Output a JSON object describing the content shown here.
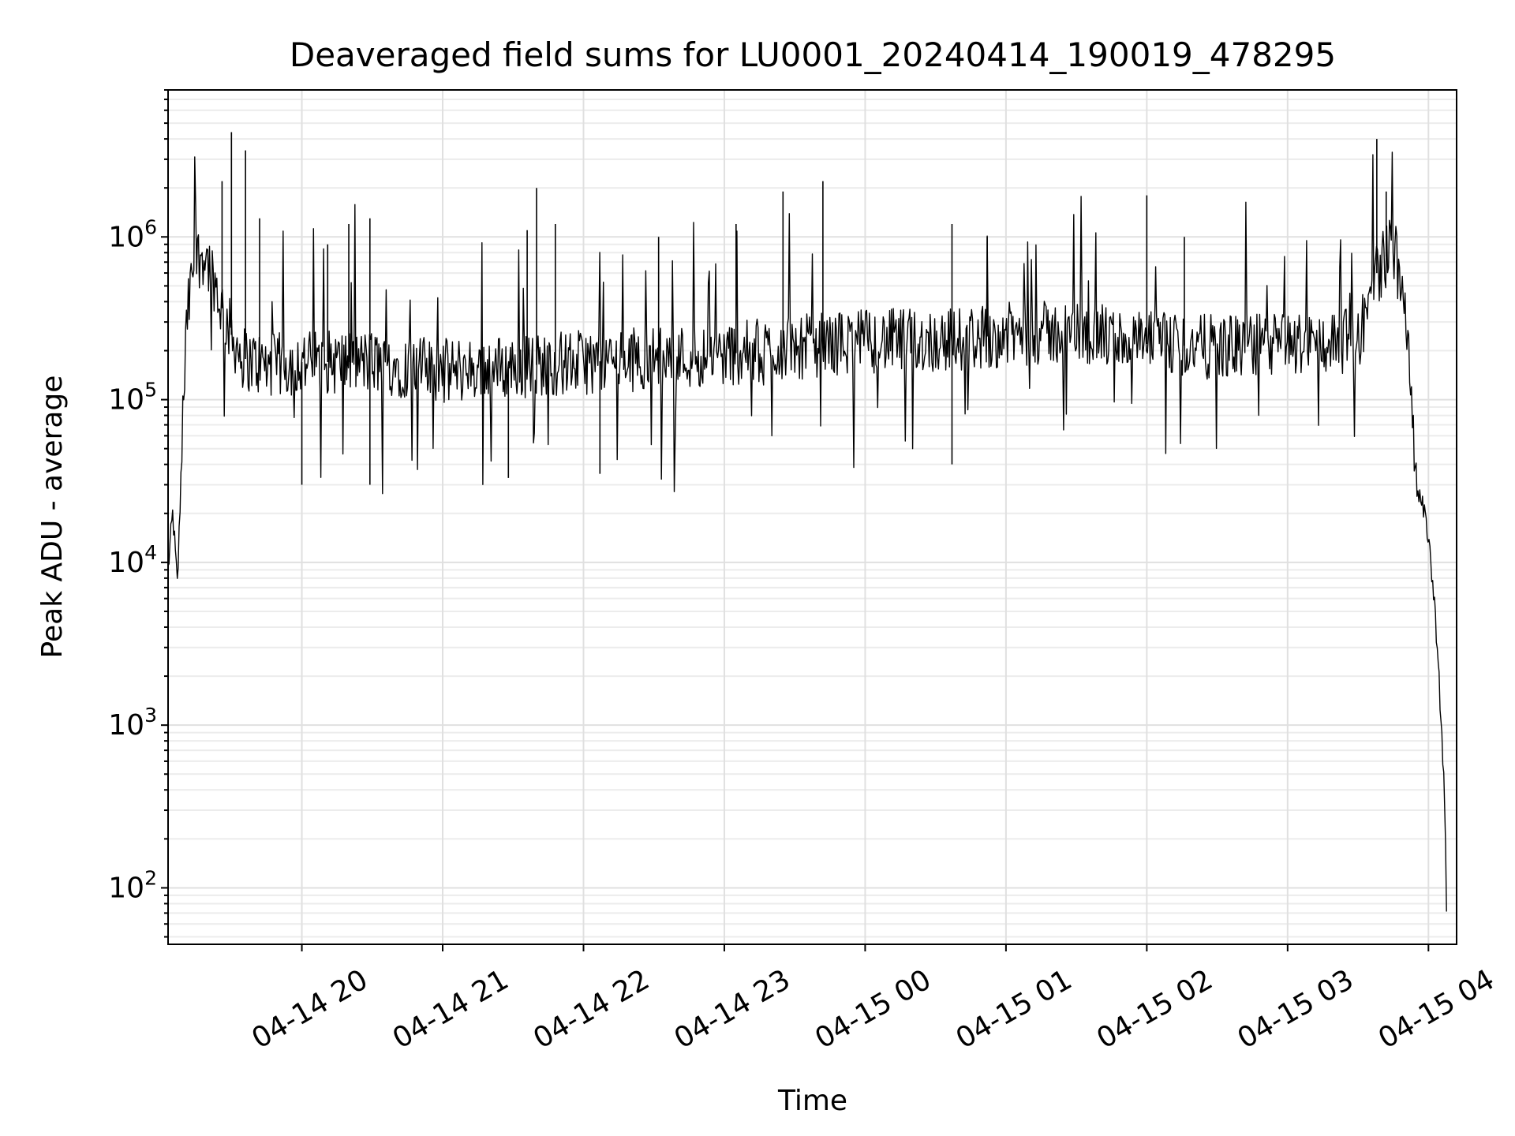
{
  "chart_data": {
    "type": "line",
    "title": "Deaveraged field sums for LU0001_20240414_190019_478295",
    "xlabel": "Time",
    "ylabel": "Peak ADU - average",
    "yscale": "log",
    "ylim": [
      45,
      8000000
    ],
    "xlim": [
      "2024-04-14 19:03",
      "2024-04-15 04:12"
    ],
    "grid": true,
    "line_color": "#000000",
    "xticks": [
      {
        "value": "2024-04-14 20:00",
        "label": "04-14 20"
      },
      {
        "value": "2024-04-14 21:00",
        "label": "04-14 21"
      },
      {
        "value": "2024-04-14 22:00",
        "label": "04-14 22"
      },
      {
        "value": "2024-04-14 23:00",
        "label": "04-14 23"
      },
      {
        "value": "2024-04-15 00:00",
        "label": "04-15 00"
      },
      {
        "value": "2024-04-15 01:00",
        "label": "04-15 01"
      },
      {
        "value": "2024-04-15 02:00",
        "label": "04-15 02"
      },
      {
        "value": "2024-04-15 03:00",
        "label": "04-15 03"
      },
      {
        "value": "2024-04-15 04:00",
        "label": "04-15 04"
      }
    ],
    "yticks": [
      {
        "value": 100,
        "base": "10",
        "exp": "2"
      },
      {
        "value": 1000,
        "base": "10",
        "exp": "3"
      },
      {
        "value": 10000,
        "base": "10",
        "exp": "4"
      },
      {
        "value": 100000,
        "base": "10",
        "exp": "5"
      },
      {
        "value": 1000000,
        "base": "10",
        "exp": "6"
      }
    ],
    "series": [
      {
        "points": [
          [
            "2024-04-14 19:03",
            9000
          ],
          [
            "2024-04-14 19:05",
            20000
          ],
          [
            "2024-04-14 19:07",
            7000
          ],
          [
            "2024-04-14 19:09",
            60000
          ],
          [
            "2024-04-14 19:11",
            300000
          ],
          [
            "2024-04-14 19:14",
            700000
          ],
          [
            "2024-04-14 19:18",
            800000
          ],
          [
            "2024-04-14 19:22",
            600000
          ],
          [
            "2024-04-14 19:25",
            400000
          ],
          [
            "2024-04-14 19:30",
            250000
          ],
          [
            "2024-04-14 19:35",
            180000
          ],
          [
            "2024-04-14 19:45",
            160000
          ],
          [
            "2024-04-14 20:00",
            170000
          ],
          [
            "2024-04-14 20:30",
            170000
          ],
          [
            "2024-04-14 21:00",
            150000
          ],
          [
            "2024-04-14 21:30",
            160000
          ],
          [
            "2024-04-14 22:00",
            170000
          ],
          [
            "2024-04-14 22:30",
            180000
          ],
          [
            "2024-04-14 23:00",
            190000
          ],
          [
            "2024-04-14 23:30",
            210000
          ],
          [
            "2024-04-15 00:00",
            230000
          ],
          [
            "2024-04-15 00:30",
            230000
          ],
          [
            "2024-04-15 01:00",
            250000
          ],
          [
            "2024-04-15 01:30",
            260000
          ],
          [
            "2024-04-15 02:00",
            220000
          ],
          [
            "2024-04-15 02:30",
            210000
          ],
          [
            "2024-04-15 03:00",
            220000
          ],
          [
            "2024-04-15 03:30",
            230000
          ],
          [
            "2024-04-15 03:38",
            600000
          ],
          [
            "2024-04-15 03:45",
            900000
          ],
          [
            "2024-04-15 03:50",
            500000
          ],
          [
            "2024-04-15 03:55",
            30000
          ],
          [
            "2024-04-15 04:00",
            15000
          ],
          [
            "2024-04-15 04:04",
            3000
          ],
          [
            "2024-04-15 04:07",
            300
          ],
          [
            "2024-04-15 04:08",
            45
          ]
        ],
        "spikes": [
          [
            "2024-04-14 19:26",
            2200000
          ],
          [
            "2024-04-14 19:30",
            4400000
          ],
          [
            "2024-04-14 19:36",
            3400000
          ],
          [
            "2024-04-14 19:42",
            1300000
          ],
          [
            "2024-04-14 20:00",
            30000
          ],
          [
            "2024-04-14 20:11",
            900000
          ],
          [
            "2024-04-14 20:20",
            1200000
          ],
          [
            "2024-04-14 20:29",
            30000
          ],
          [
            "2024-04-14 20:29",
            1300000
          ],
          [
            "2024-04-14 21:28",
            33000
          ],
          [
            "2024-04-14 21:36",
            1100000
          ],
          [
            "2024-04-14 21:40",
            2000000
          ],
          [
            "2024-04-14 21:48",
            1200000
          ],
          [
            "2024-04-14 22:07",
            35000
          ],
          [
            "2024-04-14 22:32",
            1000000
          ],
          [
            "2024-04-14 23:05",
            1200000
          ],
          [
            "2024-04-14 23:25",
            1900000
          ],
          [
            "2024-04-14 23:42",
            2200000
          ],
          [
            "2024-04-15 00:37",
            1200000
          ],
          [
            "2024-04-15 00:37",
            40000
          ],
          [
            "2024-04-15 00:52",
            1000000
          ],
          [
            "2024-04-15 02:00",
            1800000
          ],
          [
            "2024-04-15 02:16",
            1000000
          ],
          [
            "2024-04-15 03:38",
            4000000
          ],
          [
            "2024-04-15 03:42",
            1900000
          ]
        ]
      }
    ]
  }
}
